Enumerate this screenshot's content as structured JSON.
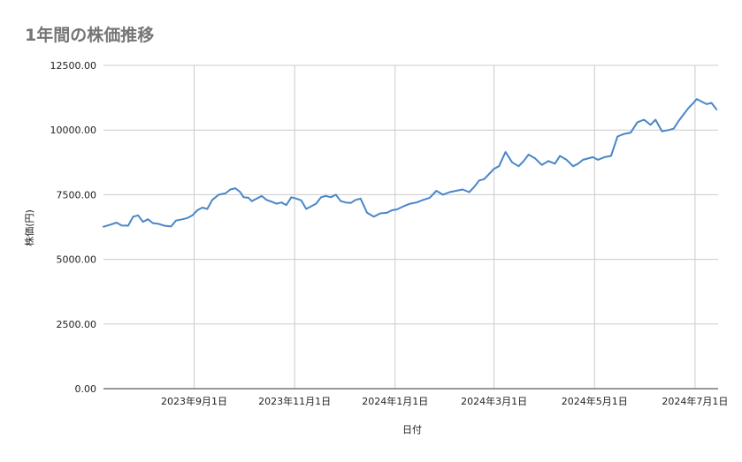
{
  "chart_data": {
    "type": "line",
    "title": "1年間の株価推移",
    "xlabel": "日付",
    "ylabel": "株価(円)",
    "ylim": [
      0,
      12500
    ],
    "yticks": [
      0,
      2500,
      5000,
      7500,
      10000,
      12500
    ],
    "ytick_labels": [
      "0.00",
      "2500.00",
      "5000.00",
      "7500.00",
      "10000.00",
      "12500.00"
    ],
    "xlim": [
      "2023-07-08",
      "2024-07-15"
    ],
    "xticks": [
      "2023-09-01",
      "2023-11-01",
      "2024-01-01",
      "2024-03-01",
      "2024-05-01",
      "2024-07-01"
    ],
    "xtick_labels": [
      "2023年9月1日",
      "2023年11月1日",
      "2024年1月1日",
      "2024年3月1日",
      "2024年5月1日",
      "2024年7月1日"
    ],
    "grid": true,
    "colors": {
      "series": "#4a86c8",
      "grid": "#cccccc",
      "title": "#757575"
    },
    "series": [
      {
        "x": [
          "2023-07-08",
          "2023-07-12",
          "2023-07-16",
          "2023-07-19",
          "2023-07-23",
          "2023-07-26",
          "2023-07-29",
          "2023-08-01",
          "2023-08-04",
          "2023-08-07",
          "2023-08-10",
          "2023-08-14",
          "2023-08-18",
          "2023-08-21",
          "2023-08-25",
          "2023-08-28",
          "2023-08-31",
          "2023-09-03",
          "2023-09-06",
          "2023-09-09",
          "2023-09-12",
          "2023-09-16",
          "2023-09-20",
          "2023-09-23",
          "2023-09-26",
          "2023-09-29",
          "2023-10-01",
          "2023-10-04",
          "2023-10-06",
          "2023-10-09",
          "2023-10-12",
          "2023-10-15",
          "2023-10-18",
          "2023-10-21",
          "2023-10-24",
          "2023-10-27",
          "2023-10-30",
          "2023-11-02",
          "2023-11-05",
          "2023-11-08",
          "2023-11-11",
          "2023-11-14",
          "2023-11-17",
          "2023-11-20",
          "2023-11-23",
          "2023-11-26",
          "2023-11-29",
          "2023-12-02",
          "2023-12-05",
          "2023-12-08",
          "2023-12-11",
          "2023-12-15",
          "2023-12-19",
          "2023-12-23",
          "2023-12-27",
          "2023-12-30",
          "2024-01-02",
          "2024-01-06",
          "2024-01-10",
          "2024-01-14",
          "2024-01-18",
          "2024-01-22",
          "2024-01-26",
          "2024-01-30",
          "2024-02-03",
          "2024-02-07",
          "2024-02-11",
          "2024-02-15",
          "2024-02-18",
          "2024-02-21",
          "2024-02-24",
          "2024-02-27",
          "2024-03-01",
          "2024-03-04",
          "2024-03-08",
          "2024-03-12",
          "2024-03-16",
          "2024-03-19",
          "2024-03-22",
          "2024-03-26",
          "2024-03-30",
          "2024-04-03",
          "2024-04-07",
          "2024-04-10",
          "2024-04-14",
          "2024-04-18",
          "2024-04-21",
          "2024-04-24",
          "2024-04-27",
          "2024-04-30",
          "2024-05-03",
          "2024-05-07",
          "2024-05-11",
          "2024-05-15",
          "2024-05-19",
          "2024-05-23",
          "2024-05-27",
          "2024-05-31",
          "2024-06-04",
          "2024-06-07",
          "2024-06-11",
          "2024-06-15",
          "2024-06-18",
          "2024-06-21",
          "2024-06-24",
          "2024-06-27",
          "2024-06-30",
          "2024-07-02",
          "2024-07-05",
          "2024-07-08",
          "2024-07-11",
          "2024-07-14"
        ],
        "values": [
          6260,
          6340,
          6420,
          6310,
          6300,
          6650,
          6700,
          6450,
          6550,
          6400,
          6380,
          6300,
          6270,
          6500,
          6550,
          6600,
          6700,
          6900,
          7000,
          6950,
          7300,
          7500,
          7550,
          7700,
          7750,
          7600,
          7400,
          7380,
          7250,
          7350,
          7450,
          7300,
          7230,
          7150,
          7200,
          7100,
          7400,
          7350,
          7280,
          6950,
          7050,
          7150,
          7400,
          7450,
          7400,
          7500,
          7250,
          7200,
          7180,
          7300,
          7350,
          6800,
          6650,
          6780,
          6800,
          6900,
          6930,
          7050,
          7150,
          7200,
          7300,
          7380,
          7650,
          7500,
          7600,
          7650,
          7700,
          7600,
          7800,
          8050,
          8100,
          8300,
          8500,
          8600,
          9150,
          8750,
          8600,
          8800,
          9050,
          8900,
          8650,
          8800,
          8700,
          9000,
          8850,
          8600,
          8700,
          8850,
          8900,
          8950,
          8850,
          8950,
          9000,
          9750,
          9850,
          9900,
          10300,
          10400,
          10200,
          10400,
          9950,
          10000,
          10050,
          10350,
          10600,
          10850,
          11050,
          11200,
          11100,
          11000,
          11050,
          10800
        ]
      }
    ]
  }
}
